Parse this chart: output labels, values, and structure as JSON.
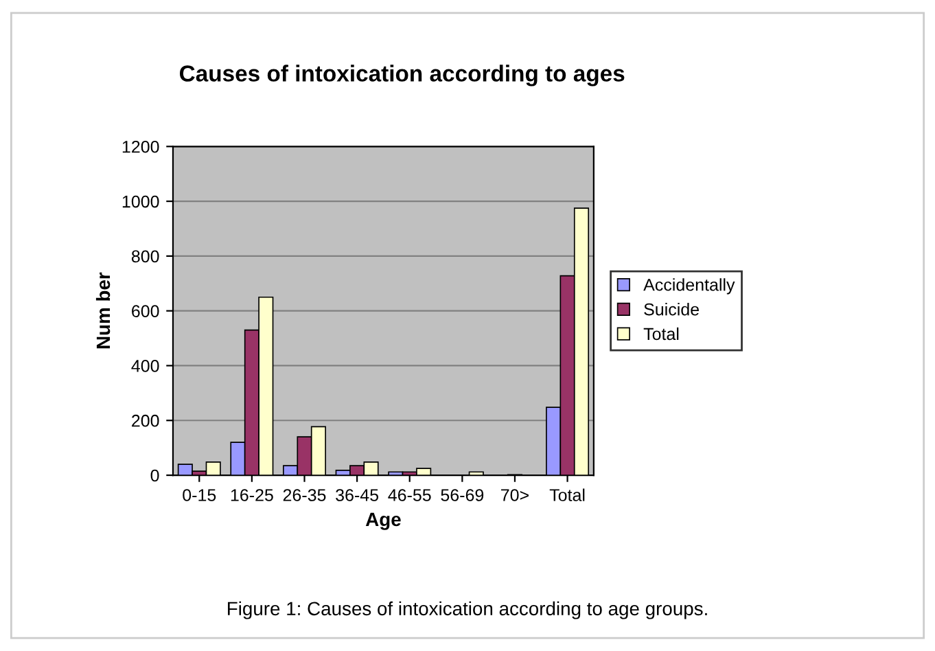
{
  "chart_data": {
    "type": "bar",
    "title": "Causes of intoxication according to ages",
    "xlabel": "Age",
    "ylabel": "Num ber",
    "categories": [
      "0-15",
      "16-25",
      "26-35",
      "36-45",
      "46-55",
      "56-69",
      "70>",
      "Total"
    ],
    "series": [
      {
        "name": "Accidentally",
        "color": "#9999ff",
        "values": [
          40,
          120,
          35,
          18,
          12,
          null,
          null,
          248
        ]
      },
      {
        "name": "Suicide",
        "color": "#993366",
        "values": [
          15,
          530,
          140,
          35,
          12,
          null,
          2,
          728
        ]
      },
      {
        "name": "Total",
        "color": "#ffffcc",
        "values": [
          48,
          650,
          177,
          48,
          25,
          12,
          null,
          975
        ]
      }
    ],
    "ylim": [
      0,
      1200
    ],
    "yticks": [
      0,
      200,
      400,
      600,
      800,
      1000,
      1200
    ],
    "grid": "y",
    "legend": "right",
    "annotations": [
      "Figure 1: Causes of intoxication according to age groups."
    ]
  }
}
